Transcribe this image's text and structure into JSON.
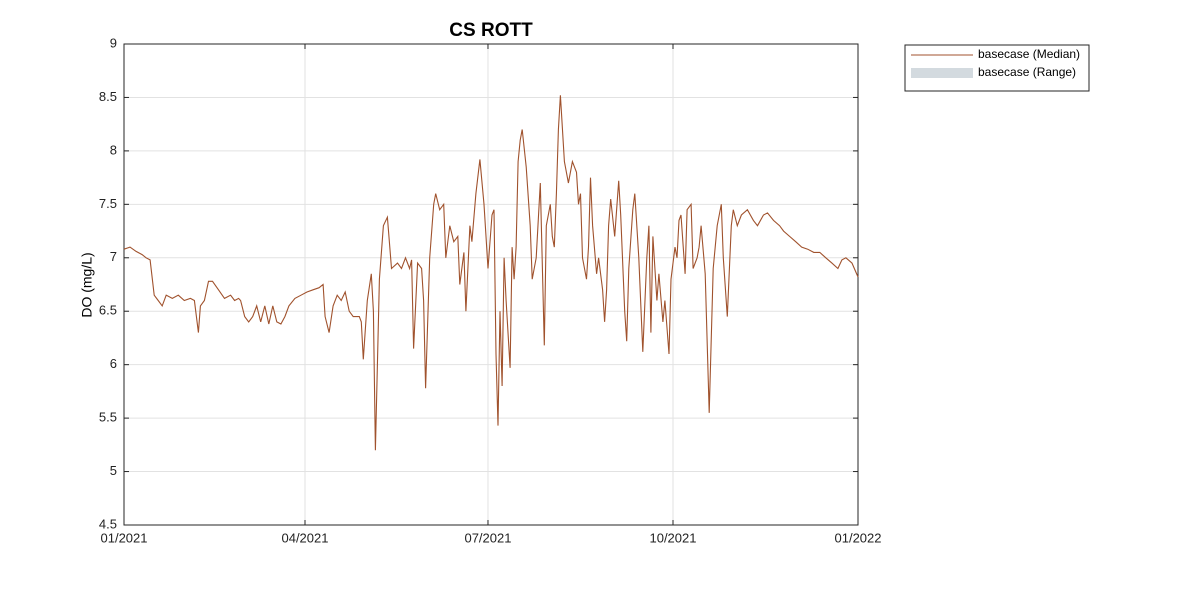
{
  "chart_data": {
    "type": "line",
    "title": "CS ROTT",
    "y_label": "DO (mg/L)",
    "x": [
      0,
      3,
      6,
      9,
      11,
      13,
      15,
      17,
      19,
      21,
      24,
      27,
      30,
      33,
      35,
      37,
      38,
      40,
      42,
      44,
      47,
      50,
      53,
      55,
      57,
      58,
      60,
      62,
      64,
      66,
      68,
      70,
      72,
      74,
      76,
      78,
      80,
      82,
      85,
      88,
      91,
      94,
      97,
      99,
      100,
      102,
      104,
      106,
      108,
      110,
      112,
      114,
      117,
      118,
      119,
      121,
      123,
      124,
      125,
      127,
      129,
      131,
      133,
      136,
      138,
      140,
      142,
      143,
      144,
      146,
      148,
      149,
      150,
      152,
      154,
      155,
      157,
      159,
      160,
      162,
      164,
      166,
      167,
      169,
      170,
      172,
      173,
      175,
      177,
      179,
      180,
      181,
      183,
      184,
      185,
      186,
      187,
      188,
      189,
      190,
      192,
      193,
      194,
      195,
      196,
      197,
      198,
      200,
      202,
      203,
      205,
      207,
      209,
      210,
      212,
      213,
      214,
      215,
      216,
      217,
      219,
      221,
      223,
      225,
      226,
      227,
      228,
      230,
      231,
      232,
      233,
      235,
      236,
      238,
      239,
      240,
      241,
      242,
      244,
      246,
      247,
      249,
      250,
      251,
      253,
      254,
      256,
      258,
      260,
      261,
      262,
      263,
      265,
      266,
      268,
      269,
      271,
      272,
      274,
      275,
      276,
      277,
      279,
      280,
      282,
      283,
      285,
      286,
      287,
      289,
      291,
      293,
      295,
      297,
      298,
      300,
      302,
      303,
      305,
      307,
      310,
      313,
      315,
      318,
      320,
      323,
      326,
      328,
      331,
      334,
      337,
      340,
      343,
      346,
      349,
      352,
      355,
      357,
      359,
      362,
      365
    ],
    "series": [
      {
        "name": "basecase (Median)",
        "color": "#a0522d",
        "values": [
          7.08,
          7.1,
          7.06,
          7.03,
          7.0,
          6.98,
          6.65,
          6.6,
          6.55,
          6.65,
          6.62,
          6.65,
          6.6,
          6.62,
          6.6,
          6.3,
          6.55,
          6.6,
          6.78,
          6.78,
          6.7,
          6.62,
          6.65,
          6.6,
          6.62,
          6.6,
          6.45,
          6.4,
          6.45,
          6.55,
          6.4,
          6.55,
          6.38,
          6.55,
          6.4,
          6.38,
          6.45,
          6.55,
          6.62,
          6.65,
          6.68,
          6.7,
          6.72,
          6.75,
          6.45,
          6.3,
          6.55,
          6.65,
          6.6,
          6.68,
          6.5,
          6.45,
          6.45,
          6.4,
          6.05,
          6.6,
          6.85,
          6.5,
          5.2,
          6.8,
          7.3,
          7.38,
          6.9,
          6.95,
          6.9,
          7.0,
          6.9,
          6.98,
          6.15,
          6.95,
          6.9,
          6.6,
          5.78,
          7.0,
          7.5,
          7.6,
          7.45,
          7.5,
          7.0,
          7.3,
          7.15,
          7.2,
          6.75,
          7.05,
          6.5,
          7.3,
          7.15,
          7.6,
          7.92,
          7.5,
          7.2,
          6.9,
          7.4,
          7.45,
          6.1,
          5.43,
          6.5,
          5.8,
          7.0,
          6.6,
          5.97,
          7.1,
          6.8,
          7.1,
          7.9,
          8.1,
          8.2,
          7.85,
          7.3,
          6.8,
          7.0,
          7.7,
          6.18,
          7.3,
          7.5,
          7.2,
          7.1,
          7.6,
          8.2,
          8.52,
          7.9,
          7.7,
          7.9,
          7.8,
          7.5,
          7.6,
          7.0,
          6.8,
          7.1,
          7.75,
          7.3,
          6.85,
          7.0,
          6.7,
          6.4,
          6.7,
          7.3,
          7.55,
          7.2,
          7.72,
          7.4,
          6.5,
          6.22,
          6.9,
          7.45,
          7.6,
          7.0,
          6.12,
          7.0,
          7.3,
          6.3,
          7.2,
          6.6,
          6.85,
          6.4,
          6.6,
          6.1,
          6.8,
          7.1,
          7.0,
          7.35,
          7.4,
          6.85,
          7.45,
          7.5,
          6.9,
          7.0,
          7.1,
          7.3,
          6.85,
          5.55,
          6.9,
          7.3,
          7.5,
          7.0,
          6.45,
          7.3,
          7.45,
          7.3,
          7.4,
          7.45,
          7.35,
          7.3,
          7.4,
          7.42,
          7.35,
          7.3,
          7.25,
          7.2,
          7.15,
          7.1,
          7.08,
          7.05,
          7.05,
          7.0,
          6.95,
          6.9,
          6.98,
          7.0,
          6.95,
          6.82
        ]
      },
      {
        "name": "basecase (Range)",
        "color": "#d3dadf"
      }
    ],
    "xlim": [
      0,
      365
    ],
    "xticks": [
      {
        "value": 0,
        "label": "01/2021"
      },
      {
        "value": 90,
        "label": "04/2021"
      },
      {
        "value": 181,
        "label": "07/2021"
      },
      {
        "value": 273,
        "label": "10/2021"
      },
      {
        "value": 365,
        "label": "01/2022"
      }
    ],
    "ylim": [
      4.5,
      9
    ],
    "yticks": [
      4.5,
      5,
      5.5,
      6,
      6.5,
      7,
      7.5,
      8,
      8.5,
      9
    ],
    "grid": true,
    "legend": "outside-top-right"
  }
}
